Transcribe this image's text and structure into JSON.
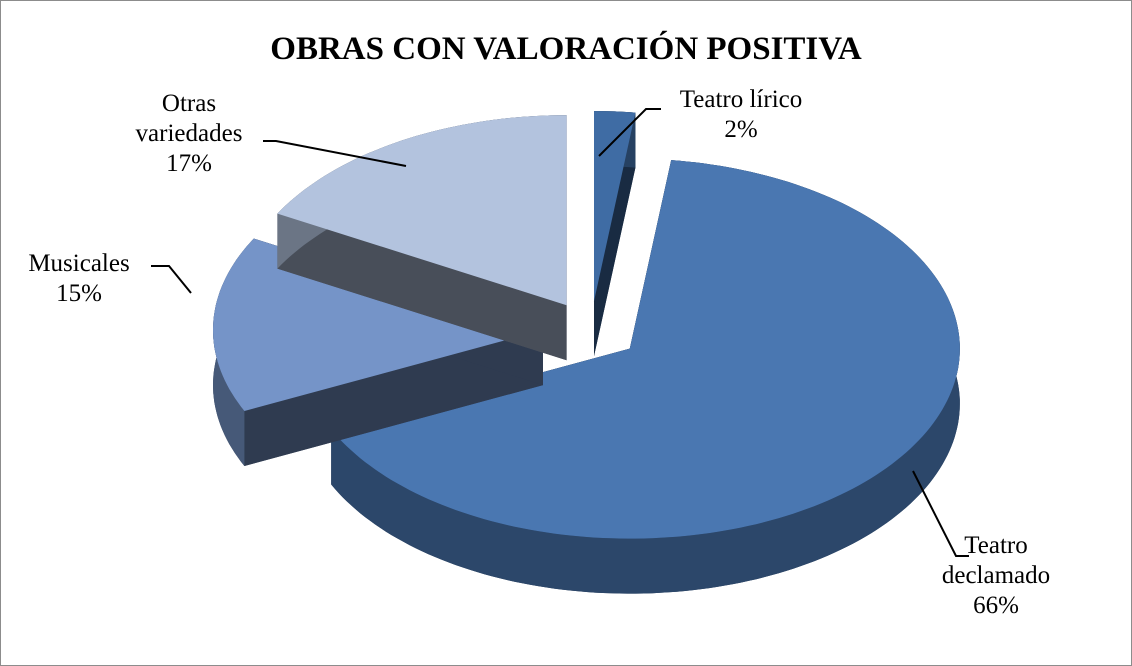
{
  "chart_data": {
    "type": "pie",
    "title": "OBRAS CON VALORACIÓN POSITIVA",
    "categories": [
      "Teatro lírico",
      "Teatro declamado",
      "Musicales",
      "Otras variedades"
    ],
    "values": [
      2,
      66,
      15,
      17
    ],
    "value_labels": [
      "2%",
      "66%",
      "15%",
      "17%"
    ],
    "colors": [
      "#3f6ca4",
      "#4a77b1",
      "#7594c8",
      "#b3c3de"
    ]
  }
}
